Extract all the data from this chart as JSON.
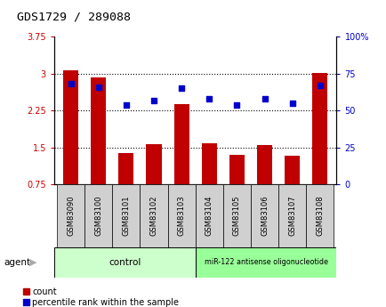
{
  "title": "GDS1729 / 289088",
  "samples": [
    "GSM83090",
    "GSM83100",
    "GSM83101",
    "GSM83102",
    "GSM83103",
    "GSM83104",
    "GSM83105",
    "GSM83106",
    "GSM83107",
    "GSM83108"
  ],
  "count_values": [
    3.07,
    2.93,
    1.38,
    1.57,
    2.38,
    1.58,
    1.35,
    1.55,
    1.33,
    3.02
  ],
  "percentile_values": [
    68,
    66,
    54,
    57,
    65,
    58,
    54,
    58,
    55,
    67
  ],
  "ylim_left": [
    0.75,
    3.75
  ],
  "ylim_right": [
    0,
    100
  ],
  "yticks_left": [
    0.75,
    1.5,
    2.25,
    3.0,
    3.75
  ],
  "ytick_labels_left": [
    "0.75",
    "1.5",
    "2.25",
    "3",
    "3.75"
  ],
  "yticks_right": [
    0,
    25,
    50,
    75,
    100
  ],
  "ytick_labels_right": [
    "0",
    "25",
    "50",
    "75",
    "100%"
  ],
  "bar_color": "#c00000",
  "dot_color": "#0000cc",
  "bar_width": 0.55,
  "background_color": "#ffffff",
  "control_label": "control",
  "treatment_label": "miR-122 antisense oligonucleotide",
  "control_color": "#ccffcc",
  "treatment_color": "#99ff99",
  "agent_label": "agent",
  "legend_count_label": "count",
  "legend_pct_label": "percentile rank within the sample",
  "bar_tick_color": "#cc0000",
  "pct_tick_color": "#0000cc",
  "sample_box_color": "#d0d0d0",
  "grid_yticks": [
    1.5,
    2.25,
    3.0
  ]
}
